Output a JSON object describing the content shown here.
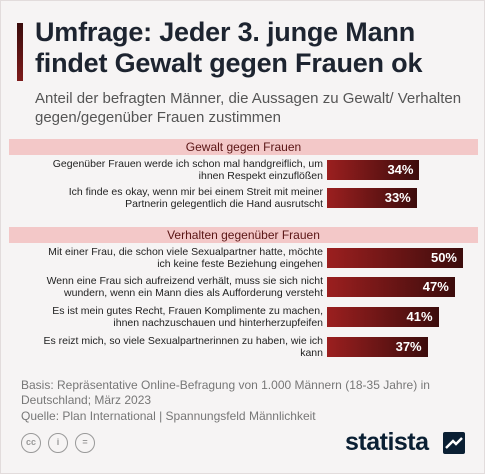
{
  "header": {
    "title": "Umfrage: Jeder 3. junge Mann findet Gewalt gegen Frauen ok",
    "subtitle": "Anteil der befragten Männer, die Aussagen zu Gewalt/ Verhalten gegen/gegenüber Frauen zustimmen"
  },
  "chart_data": {
    "type": "bar",
    "orientation": "horizontal",
    "title": "Umfrage: Jeder 3. junge Mann findet Gewalt gegen Frauen ok",
    "subtitle": "Anteil der befragten Männer, die Aussagen zu Gewalt/ Verhalten gegen/gegenüber Frauen zustimmen",
    "unit": "%",
    "xlim": [
      0,
      100
    ],
    "groups": [
      {
        "name": "Gewalt gegen Frauen",
        "items": [
          {
            "label": "Gegenüber Frauen werde ich schon mal handgreiflich, um ihnen Respekt einzuflößen",
            "value": 34,
            "value_label": "34%"
          },
          {
            "label": "Ich finde es okay, wenn mir bei einem Streit mit meiner Partnerin gelegentlich die Hand ausrutscht",
            "value": 33,
            "value_label": "33%"
          }
        ]
      },
      {
        "name": "Verhalten gegenüber Frauen",
        "items": [
          {
            "label": "Mit einer Frau, die schon viele Sexualpartner hatte, möchte ich keine feste Beziehung eingehen",
            "value": 50,
            "value_label": "50%"
          },
          {
            "label": "Wenn eine Frau sich aufreizend verhält, muss sie sich nicht wundern, wenn ein Mann dies als Aufforderung versteht",
            "value": 47,
            "value_label": "47%"
          },
          {
            "label": "Es ist mein gutes Recht, Frauen Komplimente zu machen, ihnen nachzuschauen und hinterherzupfeifen",
            "value": 41,
            "value_label": "41%"
          },
          {
            "label": "Es reizt mich, so viele Sexualpartnerinnen zu haben, wie ich kann",
            "value": 37,
            "value_label": "37%"
          }
        ]
      }
    ],
    "colors": {
      "bar_start": "#9b1f1f",
      "bar_end": "#3c0c0c",
      "section_bg": "#f3c8c8",
      "section_text": "#5a1515"
    }
  },
  "footer": {
    "basis": "Basis: Repräsentative Online-Befragung von 1.000 Männern (18-35 Jahre) in Deutschland; März 2023",
    "source": "Quelle: Plan International | Spannungsfeld Männlichkeit",
    "license_icons": [
      "cc-icon",
      "person-icon",
      "equals-icon"
    ],
    "license_glyphs": [
      "cc",
      "i",
      "="
    ],
    "brand": "statista"
  }
}
